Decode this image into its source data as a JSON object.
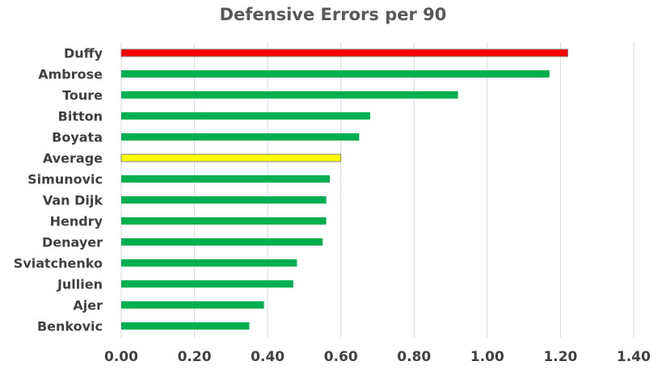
{
  "chart_data": {
    "type": "bar",
    "orientation": "horizontal",
    "title": "Defensive Errors per 90",
    "xlabel": "",
    "ylabel": "",
    "xlim": [
      0,
      1.4
    ],
    "x_ticks": [
      "0.00",
      "0.20",
      "0.40",
      "0.60",
      "0.80",
      "1.00",
      "1.20",
      "1.40"
    ],
    "grid": true,
    "categories": [
      "Duffy",
      "Ambrose",
      "Toure",
      "Bitton",
      "Boyata",
      "Average",
      "Simunovic",
      "Van Dijk",
      "Hendry",
      "Denayer",
      "Sviatchenko",
      "Jullien",
      "Ajer",
      "Benkovic"
    ],
    "values": [
      1.22,
      1.17,
      0.92,
      0.68,
      0.65,
      0.6,
      0.57,
      0.56,
      0.56,
      0.55,
      0.48,
      0.47,
      0.39,
      0.35
    ],
    "colors": {
      "default": "#00b050",
      "highlight": "#ff0000",
      "average": "#ffff00",
      "bar_outline": "#7f7f7f",
      "text": "#404040",
      "title": "#595959",
      "grid": "#d9d9d9"
    },
    "bar_colors": [
      "#ff0000",
      "#00b050",
      "#00b050",
      "#00b050",
      "#00b050",
      "#ffff00",
      "#00b050",
      "#00b050",
      "#00b050",
      "#00b050",
      "#00b050",
      "#00b050",
      "#00b050",
      "#00b050"
    ]
  }
}
